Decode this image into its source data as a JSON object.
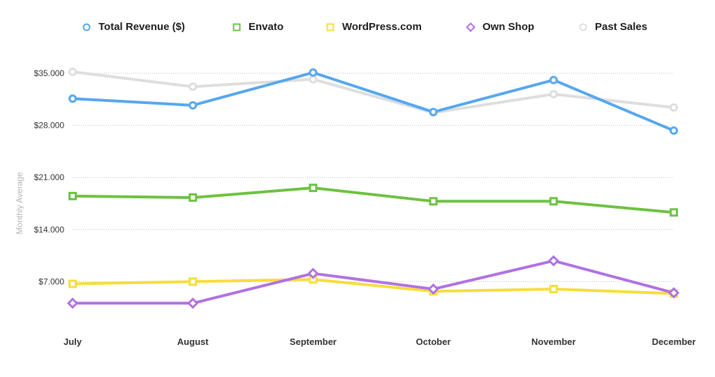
{
  "chart_data": {
    "type": "line",
    "title": "",
    "xlabel": "",
    "ylabel": "Monthly Average",
    "categories": [
      "July",
      "August",
      "September",
      "October",
      "November",
      "December"
    ],
    "y_ticks": [
      {
        "value": 7000,
        "label": "$7.000"
      },
      {
        "value": 14000,
        "label": "$14.000"
      },
      {
        "value": 21000,
        "label": "$21.000"
      },
      {
        "value": 28000,
        "label": "$28.000"
      },
      {
        "value": 35000,
        "label": "$35.000"
      }
    ],
    "ylim": [
      0,
      35000
    ],
    "grid": "horizontal dotted",
    "legend_position": "top",
    "series": [
      {
        "name": "Past Sales",
        "color": "#dedede",
        "marker": "circle",
        "values": [
          35200,
          33200,
          34200,
          29700,
          32200,
          30400
        ]
      },
      {
        "name": "Total Revenue ($)",
        "color": "#55a7f0",
        "marker": "circle",
        "values": [
          31600,
          30700,
          35100,
          29800,
          34100,
          27300
        ]
      },
      {
        "name": "Envato",
        "color": "#6cc241",
        "marker": "square",
        "values": [
          18500,
          18300,
          19600,
          17800,
          17800,
          16300
        ]
      },
      {
        "name": "WordPress.com",
        "color": "#f7dd3a",
        "marker": "square",
        "values": [
          6700,
          7000,
          7300,
          5700,
          6000,
          5400
        ]
      },
      {
        "name": "Own Shop",
        "color": "#b071e3",
        "marker": "diamond",
        "values": [
          4100,
          4100,
          8100,
          6000,
          9800,
          5500
        ]
      }
    ]
  },
  "legend": {
    "items": [
      {
        "label": "Total Revenue ($)",
        "color": "#55a7f0",
        "marker": "circle"
      },
      {
        "label": "Envato",
        "color": "#6cc241",
        "marker": "square"
      },
      {
        "label": "WordPress.com",
        "color": "#f7dd3a",
        "marker": "square"
      },
      {
        "label": "Own Shop",
        "color": "#b071e3",
        "marker": "diamond"
      },
      {
        "label": "Past Sales",
        "color": "#dedede",
        "marker": "circle"
      }
    ]
  }
}
